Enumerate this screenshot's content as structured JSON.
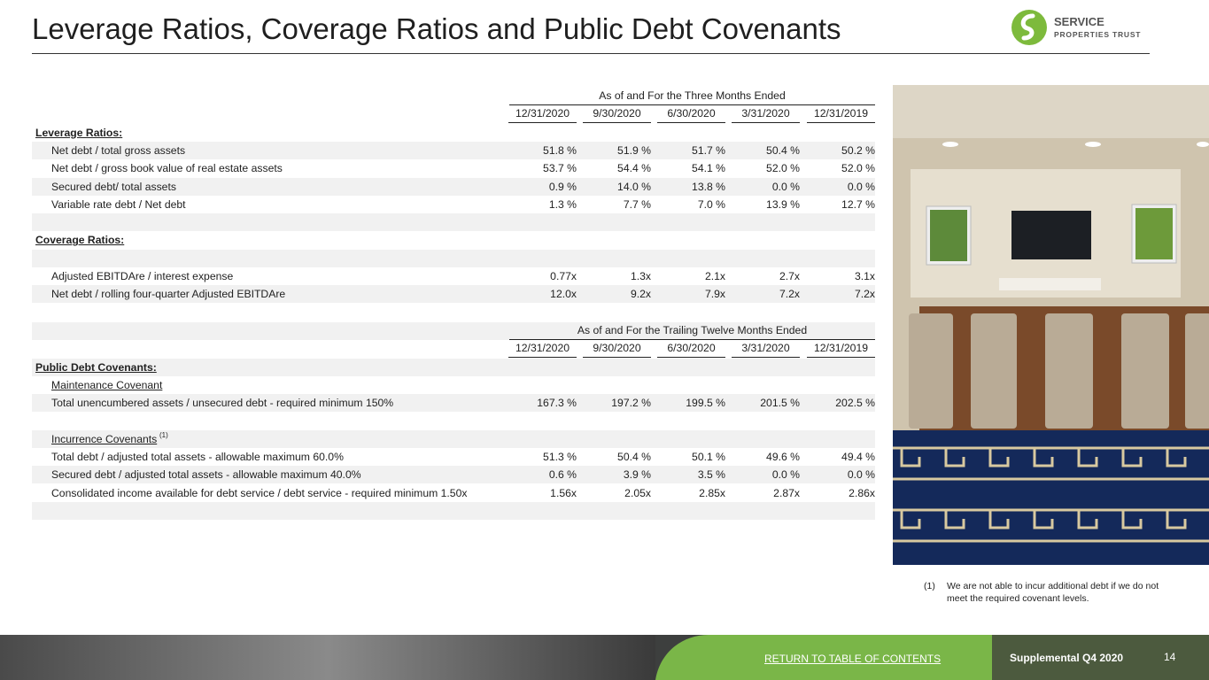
{
  "header": {
    "title": "Leverage Ratios, Coverage Ratios and Public Debt Covenants",
    "logo": {
      "line1": "SERVICE",
      "line2": "PROPERTIES TRUST"
    }
  },
  "tables": [
    {
      "group_header": "As of and For the Three Months Ended",
      "columns": [
        "12/31/2020",
        "9/30/2020",
        "6/30/2020",
        "3/31/2020",
        "12/31/2019"
      ],
      "rows": [
        {
          "label": "Leverage Ratios:",
          "kind": "section"
        },
        {
          "label": "Net debt / total gross assets",
          "values": [
            "51.8 %",
            "51.9 %",
            "51.7 %",
            "50.4 %",
            "50.2 %"
          ]
        },
        {
          "label": "Net debt / gross book value of real estate assets",
          "values": [
            "53.7 %",
            "54.4 %",
            "54.1 %",
            "52.0 %",
            "52.0 %"
          ]
        },
        {
          "label": "Secured debt/ total assets",
          "values": [
            "0.9 %",
            "14.0 %",
            "13.8 %",
            "0.0 %",
            "0.0 %"
          ]
        },
        {
          "label": "Variable rate debt / Net debt",
          "values": [
            "1.3 %",
            "7.7 %",
            "7.0 %",
            "13.9 %",
            "12.7 %"
          ]
        },
        {
          "kind": "blank"
        },
        {
          "label": "Coverage Ratios:",
          "kind": "section"
        },
        {
          "kind": "blank"
        },
        {
          "label": "Adjusted EBITDAre / interest expense",
          "values": [
            "0.77x",
            "1.3x",
            "2.1x",
            "2.7x",
            "3.1x"
          ]
        },
        {
          "label": "Net debt / rolling four-quarter Adjusted EBITDAre",
          "values": [
            "12.0x",
            "9.2x",
            "7.9x",
            "7.2x",
            "7.2x"
          ]
        }
      ]
    },
    {
      "group_header": "As of and For the Trailing Twelve Months Ended",
      "columns": [
        "12/31/2020",
        "9/30/2020",
        "6/30/2020",
        "3/31/2020",
        "12/31/2019"
      ],
      "rows": [
        {
          "label": "Public Debt Covenants:",
          "kind": "section"
        },
        {
          "label": "Maintenance Covenant",
          "kind": "subheading"
        },
        {
          "label": "Total unencumbered assets / unsecured debt - required minimum 150%",
          "values": [
            "167.3 %",
            "197.2 %",
            "199.5 %",
            "201.5 %",
            "202.5 %"
          ]
        },
        {
          "kind": "blank"
        },
        {
          "label": "Incurrence Covenants",
          "kind": "subheading",
          "footnote_ref": "(1)"
        },
        {
          "label": "Total debt / adjusted total assets - allowable maximum 60.0%",
          "values": [
            "51.3 %",
            "50.4 %",
            "50.1 %",
            "49.6 %",
            "49.4 %"
          ]
        },
        {
          "label": "Secured debt / adjusted total assets - allowable maximum 40.0%",
          "values": [
            "0.6 %",
            "3.9 %",
            "3.5 %",
            "0.0 %",
            "0.0 %"
          ]
        },
        {
          "label": "Consolidated income available for debt service / debt service - required minimum 1.50x",
          "values": [
            "1.56x",
            "2.05x",
            "2.85x",
            "2.87x",
            "2.86x"
          ]
        },
        {
          "kind": "blank"
        }
      ]
    }
  ],
  "footnote": {
    "marker": "(1)",
    "text": "We are not able to incur additional debt if we do not meet the required covenant levels."
  },
  "footer": {
    "link": "RETURN TO TABLE OF CONTENTS",
    "label": "Supplemental Q4 2020",
    "page": "14"
  }
}
